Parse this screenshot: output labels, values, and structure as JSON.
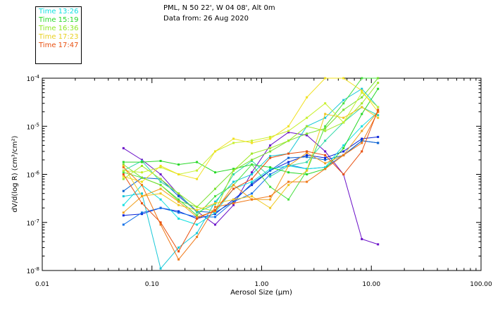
{
  "legend": [
    {
      "label": "Time 13:26",
      "color": "#12e0e0"
    },
    {
      "label": "Time 15:19",
      "color": "#28d828"
    },
    {
      "label": "Time 16:36",
      "color": "#8ee826"
    },
    {
      "label": "Time 17:23",
      "color": "#e8d020"
    },
    {
      "label": "Time 17:47",
      "color": "#e85010"
    }
  ],
  "header": {
    "line1": "PML, N 50 22', W 04 08', Alt 0m",
    "line2": "Data from: 26 Aug 2020"
  },
  "chart_data": {
    "type": "line",
    "title": "PML, N 50 22', W 04 08', Alt 0m",
    "subtitle": "Data from: 26 Aug 2020",
    "xlabel": "Aerosol Size (μm)",
    "ylabel": "dV/d(log R) (cm³/cm²)",
    "xscale": "log",
    "yscale": "log",
    "xlim": [
      0.01,
      100
    ],
    "ylim": [
      1e-08,
      0.0001
    ],
    "x_ticks": [
      "0.01",
      "0.10",
      "1.00",
      "10.00",
      "100.00"
    ],
    "y_ticks": [
      {
        "mantissa": "10",
        "exp": "-8"
      },
      {
        "mantissa": "10",
        "exp": "-7"
      },
      {
        "mantissa": "10",
        "exp": "-6"
      },
      {
        "mantissa": "10",
        "exp": "-5"
      },
      {
        "mantissa": "10",
        "exp": "-4"
      }
    ],
    "x": [
      0.055,
      0.081,
      0.12,
      0.175,
      0.257,
      0.377,
      0.554,
      0.814,
      1.196,
      1.757,
      2.582,
      3.794,
      5.575,
      8.191,
      11.5
    ],
    "series": [
      {
        "name": "series-1",
        "color": "#6a10c8",
        "values": [
          3.5e-06,
          2e-06,
          1e-06,
          3.8e-07,
          1.7e-07,
          9e-08,
          2.3e-07,
          1.1e-06,
          4e-06,
          7.5e-06,
          6.5e-06,
          3e-06,
          1e-06,
          4.5e-08,
          3.5e-08
        ]
      },
      {
        "name": "series-2",
        "color": "#0a24d8",
        "values": [
          1.4e-07,
          1.5e-07,
          2e-07,
          1.7e-07,
          1.2e-07,
          1.5e-07,
          3e-07,
          6e-07,
          1.2e-06,
          1.8e-06,
          2.5e-06,
          2.2e-06,
          3e-06,
          5.5e-06,
          6e-06
        ]
      },
      {
        "name": "series-3",
        "color": "#1070e8",
        "values": [
          9e-08,
          1.6e-07,
          2e-07,
          1.6e-07,
          1.3e-07,
          1.3e-07,
          2.7e-07,
          4e-07,
          1e-06,
          1.6e-06,
          1.3e-06,
          1.4e-06,
          2.5e-06,
          5e-06,
          4.5e-06
        ]
      },
      {
        "name": "series-4",
        "color": "#0a60d0",
        "values": [
          4.5e-07,
          8.5e-07,
          8e-07,
          3.5e-07,
          1.7e-07,
          1.6e-07,
          2.7e-07,
          6.5e-07,
          1.2e-06,
          2.2e-06,
          2.3e-06,
          2e-06,
          2.5e-06,
          5e-06,
          4.5e-06
        ]
      },
      {
        "name": "series-5",
        "color": "#12e0e0",
        "values": [
          2.3e-07,
          6e-07,
          3e-07,
          1.2e-07,
          9e-08,
          1.6e-07,
          5e-07,
          7e-07,
          1.3e-06,
          1.5e-06,
          1.3e-06,
          1.4e-06,
          4e-06,
          1e-05,
          2e-05
        ]
      },
      {
        "name": "series-6",
        "color": "#18c8d8",
        "values": [
          3.5e-07,
          4e-07,
          1.1e-08,
          3e-08,
          6e-08,
          2.7e-07,
          7e-07,
          1e-06,
          2.4e-06,
          2.7e-06,
          1e-05,
          1.5e-05,
          3.5e-05,
          6e-05,
          2.5e-05
        ]
      },
      {
        "name": "series-7",
        "color": "#30d8a8",
        "values": [
          1.2e-06,
          1.9e-06,
          7e-07,
          4e-07,
          1.6e-07,
          2.4e-07,
          1e-06,
          1.9e-06,
          9e-07,
          1.5e-06,
          1.8e-06,
          5e-06,
          1.2e-05,
          2.5e-05,
          1.7e-05
        ]
      },
      {
        "name": "series-8",
        "color": "#28d828",
        "values": [
          1.8e-06,
          1.8e-06,
          1.9e-06,
          1.6e-06,
          1.8e-06,
          1.1e-06,
          1.3e-06,
          1.6e-06,
          1.4e-06,
          1.1e-06,
          1e-06,
          1.3e-06,
          3.5e-06,
          1.8e-05,
          6e-05
        ]
      },
      {
        "name": "series-9",
        "color": "#48e040",
        "values": [
          1.1e-06,
          8.5e-07,
          6e-07,
          3e-07,
          1.4e-07,
          3.5e-07,
          6e-07,
          1.6e-06,
          5.5e-07,
          3e-07,
          1.2e-06,
          1e-05,
          3e-05,
          0.0001,
          0.0001
        ]
      },
      {
        "name": "series-10",
        "color": "#78e030",
        "values": [
          1.6e-06,
          8.5e-07,
          6e-07,
          2.8e-07,
          2.1e-07,
          5e-07,
          1.2e-06,
          2e-06,
          3e-06,
          5e-06,
          7e-06,
          9e-06,
          2.2e-05,
          4e-05,
          0.00012
        ]
      },
      {
        "name": "series-11",
        "color": "#a0e828",
        "values": [
          8e-07,
          1.5e-06,
          8e-07,
          4e-07,
          2.1e-07,
          1.7e-07,
          1.2e-06,
          2.7e-06,
          3.5e-06,
          5e-06,
          1e-05,
          8e-06,
          1.2e-05,
          3e-05,
          8e-05
        ]
      },
      {
        "name": "series-12",
        "color": "#c8f030",
        "values": [
          1.2e-06,
          1.1e-06,
          1.4e-06,
          1e-06,
          1.2e-06,
          3e-06,
          4.5e-06,
          5e-06,
          6e-06,
          8e-06,
          1.5e-05,
          3e-05,
          1.2e-05,
          5e-05,
          2.5e-05
        ]
      },
      {
        "name": "series-13",
        "color": "#f0e020",
        "values": [
          9e-07,
          7e-07,
          1.5e-06,
          1e-06,
          8e-07,
          3e-06,
          5.5e-06,
          4.5e-06,
          5.5e-06,
          1e-05,
          4e-05,
          0.0001,
          0.0001,
          5.5e-05,
          2e-05
        ]
      },
      {
        "name": "series-14",
        "color": "#f0c820",
        "values": [
          1.5e-06,
          3.5e-07,
          4e-07,
          2.3e-07,
          1.8e-07,
          2.5e-07,
          3e-07,
          3.5e-07,
          2e-07,
          6e-07,
          1.2e-06,
          1.8e-05,
          1.5e-05,
          2.5e-05,
          1.5e-05
        ]
      },
      {
        "name": "series-15",
        "color": "#f0a020",
        "values": [
          1.6e-07,
          3.5e-07,
          5e-07,
          2.7e-07,
          1.3e-07,
          1.7e-07,
          6e-07,
          3e-07,
          3e-07,
          1.5e-06,
          2.8e-06,
          1.7e-06,
          2.5e-06,
          8e-06,
          2e-05
        ]
      },
      {
        "name": "series-16",
        "color": "#f07818",
        "values": [
          1.4e-06,
          6e-07,
          9e-08,
          1.7e-08,
          5e-08,
          2.1e-07,
          2.5e-07,
          3e-07,
          3.5e-07,
          7e-07,
          7e-07,
          1.3e-06,
          2.5e-06,
          4.5e-06,
          2e-05
        ]
      },
      {
        "name": "series-17",
        "color": "#e85010",
        "values": [
          1e-06,
          2.5e-07,
          1e-07,
          2.5e-08,
          1.2e-07,
          1.8e-07,
          5e-07,
          8e-07,
          2.2e-06,
          2.7e-06,
          3e-06,
          2.5e-06,
          1e-06,
          3e-06,
          2.2e-05
        ]
      }
    ]
  }
}
